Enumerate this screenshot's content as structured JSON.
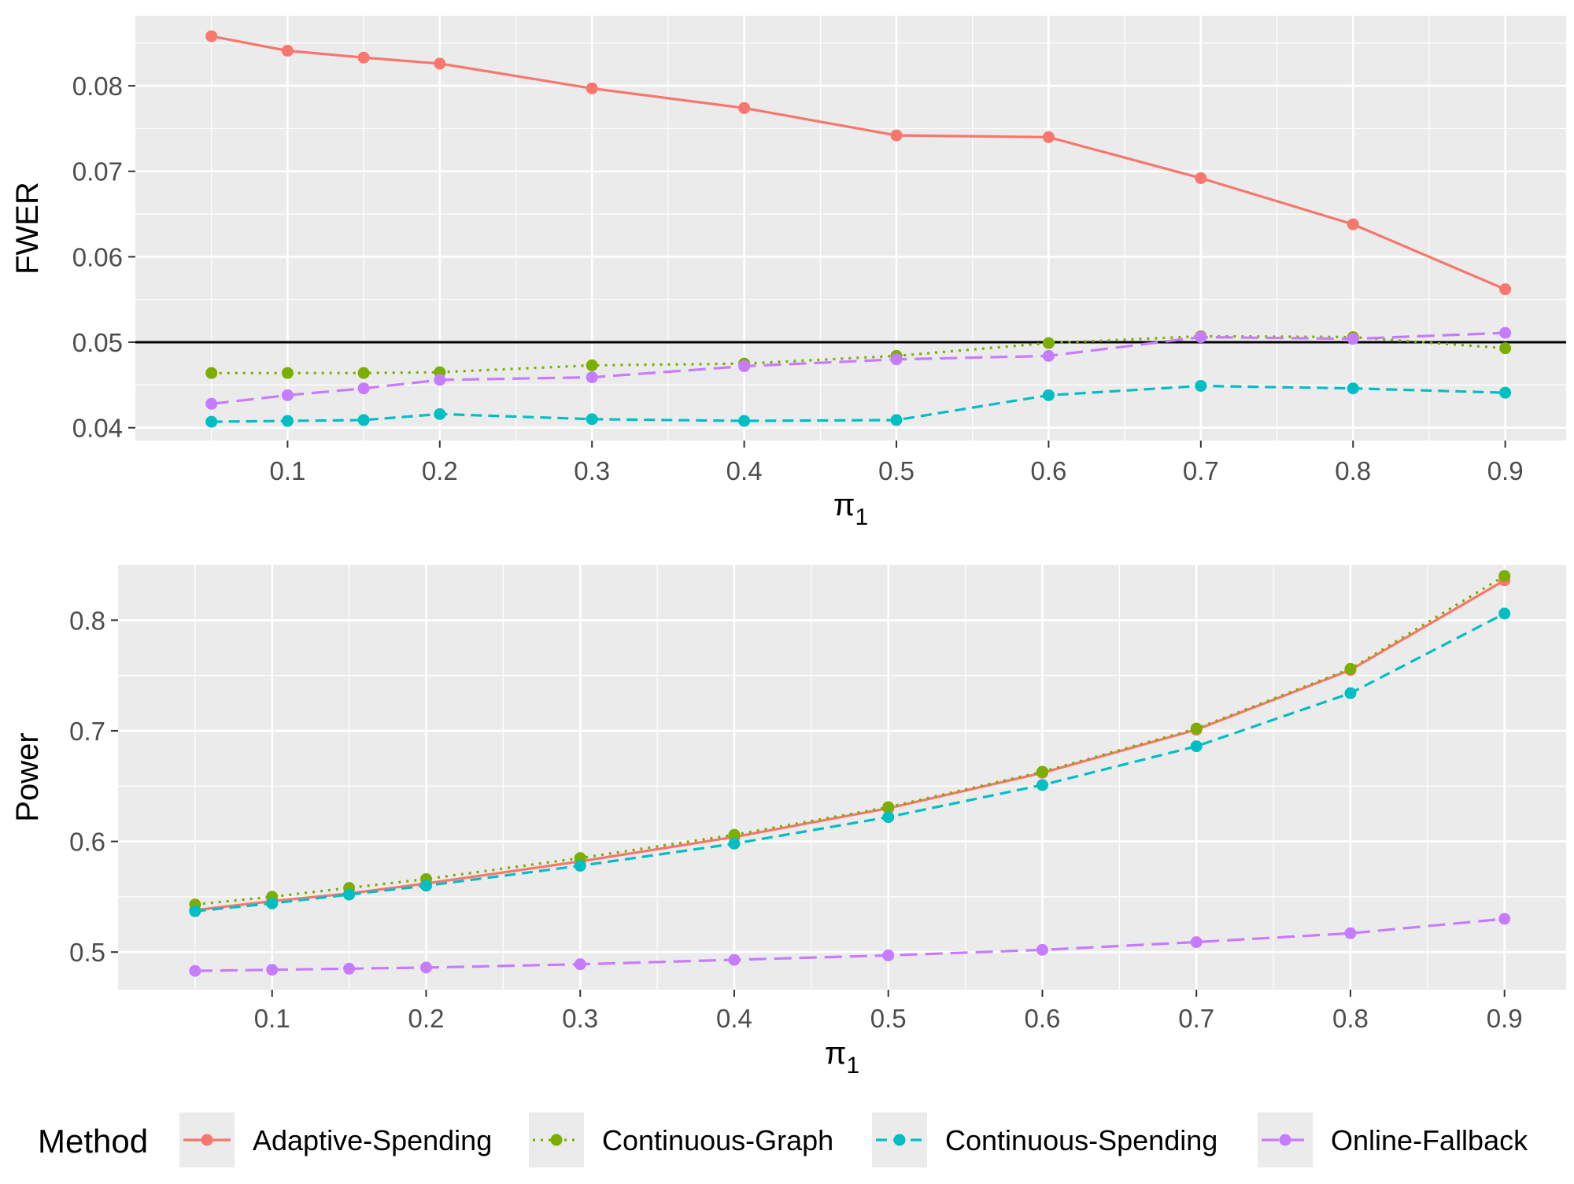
{
  "chart_data": [
    {
      "type": "line",
      "panel": "top",
      "ylabel": "FWER",
      "xlabel": "π",
      "xlabel_sub": "1",
      "xlim": [
        0.0,
        0.94
      ],
      "ylim": [
        0.0385,
        0.0882
      ],
      "x_ticks": [
        0.1,
        0.2,
        0.3,
        0.4,
        0.5,
        0.6,
        0.7,
        0.8,
        0.9
      ],
      "x_tick_labels": [
        "0.1",
        "0.2",
        "0.3",
        "0.4",
        "0.5",
        "0.6",
        "0.7",
        "0.8",
        "0.9"
      ],
      "y_ticks": [
        0.04,
        0.05,
        0.06,
        0.07,
        0.08
      ],
      "y_tick_labels": [
        "0.04",
        "0.05",
        "0.06",
        "0.07",
        "0.08"
      ],
      "reference_line": 0.05,
      "x": [
        0.05,
        0.1,
        0.15,
        0.2,
        0.3,
        0.4,
        0.5,
        0.6,
        0.7,
        0.8,
        0.9
      ],
      "series": [
        {
          "name": "Adaptive-Spending",
          "color": "#F8766D",
          "dash": "solid",
          "values": [
            0.0858,
            0.0841,
            0.0833,
            0.0826,
            0.0797,
            0.0774,
            0.0742,
            0.074,
            0.0692,
            0.0638,
            0.0562
          ]
        },
        {
          "name": "Continuous-Graph",
          "color": "#7CAE00",
          "dash": "dotted",
          "values": [
            0.0464,
            0.0464,
            0.0464,
            0.0465,
            0.0473,
            0.0475,
            0.0484,
            0.0499,
            0.0507,
            0.0506,
            0.0493
          ]
        },
        {
          "name": "Continuous-Spending",
          "color": "#00BFC4",
          "dash": "dashed",
          "values": [
            0.0407,
            0.0408,
            0.0409,
            0.0416,
            0.041,
            0.0408,
            0.0409,
            0.0438,
            0.0449,
            0.0446,
            0.0441
          ]
        },
        {
          "name": "Online-Fallback",
          "color": "#C77CFF",
          "dash": "longdash",
          "values": [
            0.0428,
            0.0438,
            0.0446,
            0.0456,
            0.0459,
            0.0472,
            0.048,
            0.0484,
            0.0506,
            0.0504,
            0.0511
          ]
        }
      ]
    },
    {
      "type": "line",
      "panel": "bottom",
      "ylabel": "Power",
      "xlabel": "π",
      "xlabel_sub": "1",
      "xlim": [
        0.0,
        0.94
      ],
      "ylim": [
        0.466,
        0.85
      ],
      "x_ticks": [
        0.1,
        0.2,
        0.3,
        0.4,
        0.5,
        0.6,
        0.7,
        0.8,
        0.9
      ],
      "x_tick_labels": [
        "0.1",
        "0.2",
        "0.3",
        "0.4",
        "0.5",
        "0.6",
        "0.7",
        "0.8",
        "0.9"
      ],
      "y_ticks": [
        0.5,
        0.6,
        0.7,
        0.8
      ],
      "y_tick_labels": [
        "0.5",
        "0.6",
        "0.7",
        "0.8"
      ],
      "x": [
        0.05,
        0.1,
        0.15,
        0.2,
        0.3,
        0.4,
        0.5,
        0.6,
        0.7,
        0.8,
        0.9
      ],
      "series": [
        {
          "name": "Adaptive-Spending",
          "color": "#F8766D",
          "dash": "solid",
          "values": [
            0.538,
            0.546,
            0.553,
            0.562,
            0.582,
            0.604,
            0.63,
            0.662,
            0.701,
            0.755,
            0.836
          ]
        },
        {
          "name": "Continuous-Graph",
          "color": "#7CAE00",
          "dash": "dotted",
          "values": [
            0.543,
            0.55,
            0.558,
            0.566,
            0.585,
            0.606,
            0.631,
            0.663,
            0.702,
            0.756,
            0.84
          ]
        },
        {
          "name": "Continuous-Spending",
          "color": "#00BFC4",
          "dash": "dashed",
          "values": [
            0.537,
            0.544,
            0.552,
            0.56,
            0.578,
            0.598,
            0.622,
            0.651,
            0.686,
            0.734,
            0.806
          ]
        },
        {
          "name": "Online-Fallback",
          "color": "#C77CFF",
          "dash": "longdash",
          "values": [
            0.483,
            0.484,
            0.485,
            0.486,
            0.489,
            0.493,
            0.497,
            0.502,
            0.509,
            0.517,
            0.53
          ]
        }
      ]
    }
  ],
  "legend": {
    "title": "Method",
    "entries": [
      {
        "name": "Adaptive-Spending",
        "color": "#F8766D",
        "dash": "solid"
      },
      {
        "name": "Continuous-Graph",
        "color": "#7CAE00",
        "dash": "dotted"
      },
      {
        "name": "Continuous-Spending",
        "color": "#00BFC4",
        "dash": "dashed"
      },
      {
        "name": "Online-Fallback",
        "color": "#C77CFF",
        "dash": "longdash"
      }
    ]
  },
  "colors": {
    "panel_bg": "#EBEBEB",
    "grid": "#FFFFFF",
    "reference_line": "#000000",
    "tick_text": "#4D4D4D"
  }
}
